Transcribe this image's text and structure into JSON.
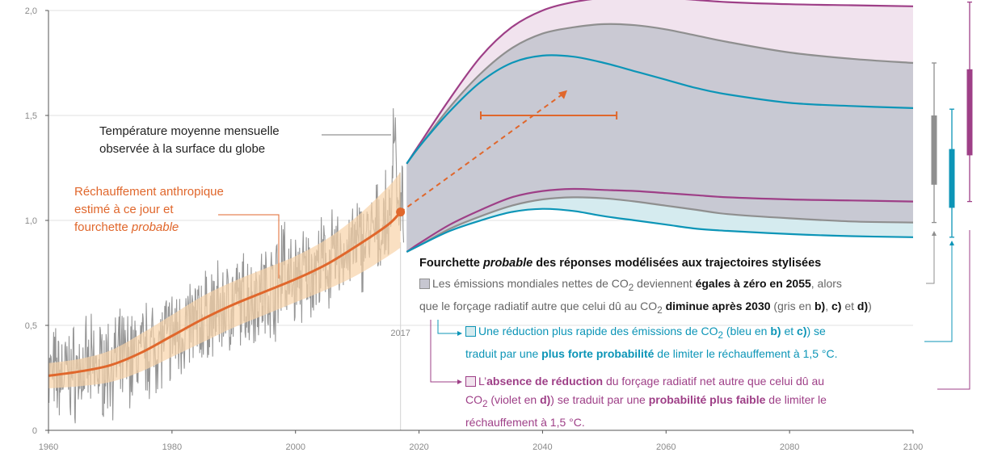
{
  "chart_data": {
    "type": "line",
    "xlim": [
      1960,
      2100
    ],
    "ylim": [
      0,
      2.0
    ],
    "x_ticks": [
      "1960",
      "1980",
      "2000",
      "2020",
      "2040",
      "2060",
      "2080",
      "2100"
    ],
    "y_ticks": [
      "0",
      "0,5",
      "1,0",
      "1,5",
      "2,0"
    ],
    "x_tick_values": [
      1960,
      1980,
      2000,
      2020,
      2040,
      2060,
      2080,
      2100
    ],
    "y_tick_values": [
      0,
      0.5,
      1.0,
      1.5,
      2.0
    ],
    "marker_year_label": "2017",
    "marker_year": 2017,
    "anthropogenic_warming": {
      "x": [
        1960,
        1965,
        1970,
        1975,
        1980,
        1985,
        1990,
        1995,
        2000,
        2005,
        2010,
        2015,
        2017
      ],
      "central": [
        0.26,
        0.28,
        0.31,
        0.37,
        0.45,
        0.53,
        0.6,
        0.66,
        0.72,
        0.79,
        0.88,
        0.98,
        1.04
      ],
      "lower": [
        0.2,
        0.21,
        0.23,
        0.28,
        0.35,
        0.42,
        0.49,
        0.55,
        0.61,
        0.67,
        0.74,
        0.83,
        0.87
      ],
      "upper": [
        0.32,
        0.34,
        0.38,
        0.46,
        0.55,
        0.64,
        0.71,
        0.77,
        0.83,
        0.91,
        1.02,
        1.16,
        1.23
      ]
    },
    "projection_arrow": {
      "from": [
        2017,
        1.04
      ],
      "to": [
        2044,
        1.62
      ]
    },
    "range_bar": {
      "x": [
        2030,
        2052
      ],
      "y": 1.5
    },
    "scenarios": {
      "x": [
        2018,
        2020,
        2025,
        2030,
        2035,
        2040,
        2045,
        2050,
        2055,
        2060,
        2065,
        2070,
        2080,
        2090,
        2100
      ],
      "purple_upper": [
        1.27,
        1.36,
        1.58,
        1.78,
        1.92,
        2.0,
        2.04,
        2.06,
        2.065,
        2.06,
        2.05,
        2.04,
        2.03,
        2.025,
        2.02
      ],
      "gray_upper": [
        1.27,
        1.35,
        1.54,
        1.7,
        1.82,
        1.89,
        1.92,
        1.935,
        1.93,
        1.91,
        1.88,
        1.85,
        1.8,
        1.77,
        1.75
      ],
      "blue_upper": [
        1.27,
        1.35,
        1.52,
        1.66,
        1.75,
        1.785,
        1.78,
        1.75,
        1.71,
        1.67,
        1.63,
        1.6,
        1.56,
        1.545,
        1.535
      ],
      "purple_lower": [
        0.85,
        0.89,
        0.98,
        1.05,
        1.11,
        1.14,
        1.15,
        1.145,
        1.14,
        1.13,
        1.12,
        1.11,
        1.1,
        1.095,
        1.09
      ],
      "gray_lower": [
        0.85,
        0.88,
        0.96,
        1.02,
        1.07,
        1.1,
        1.11,
        1.105,
        1.09,
        1.07,
        1.05,
        1.03,
        1.01,
        0.995,
        0.99
      ],
      "blue_lower": [
        0.85,
        0.88,
        0.95,
        1.0,
        1.04,
        1.055,
        1.045,
        1.02,
        1.0,
        0.98,
        0.96,
        0.95,
        0.935,
        0.925,
        0.92
      ]
    },
    "side_bars": [
      {
        "name": "gris",
        "color": "#8f8f8f",
        "whisker": [
          0.99,
          1.75
        ],
        "box": [
          1.17,
          1.5
        ]
      },
      {
        "name": "bleu",
        "color": "#0c95b7",
        "whisker": [
          0.92,
          1.53
        ],
        "box": [
          1.06,
          1.34
        ]
      },
      {
        "name": "violet",
        "color": "#9e3f87",
        "whisker": [
          1.09,
          2.04
        ],
        "box": [
          1.31,
          1.72
        ]
      }
    ],
    "colors": {
      "orange": "#e0672c",
      "orange_band": "#f8d3a8",
      "gray": "#8f8f8f",
      "blue": "#0c95b7",
      "purple": "#9e3f87",
      "gray_fill": "#c7c7d1",
      "blue_fill": "#d5ebef",
      "purple_fill": "#f1e3ee",
      "observed": "#8a8a8a"
    }
  },
  "annotations": {
    "observed_line1": "Température moyenne mensuelle",
    "observed_line2": "observée à la surface du globe",
    "anthro_line1": "Réchauffement anthropique",
    "anthro_line2": "estimé à ce jour et",
    "anthro_line3_prefix": "fourchette ",
    "anthro_line3_italic": "probable"
  },
  "legend": {
    "title_prefix": "Fourchette ",
    "title_italic": "probable",
    "title_suffix": " des réponses modélisées aux trajectoires stylisées",
    "gray": {
      "t1": "Les émissions mondiales nettes de CO",
      "t1_sub": "2",
      "t2": " deviennent ",
      "b1": "égales à zéro en 2055",
      "t3": ", alors",
      "t4": "que le forçage radiatif autre que celui dû au CO",
      "t4_sub": "2",
      "t5": " ",
      "b2": "diminue après 2030",
      "t6": " (gris en ",
      "b3": "b)",
      "t7": ", ",
      "b4": "c)",
      "t8": " et ",
      "b5": "d)",
      "t9": ")"
    },
    "blue": {
      "t1": "Une réduction plus rapide des émissions de CO",
      "t1_sub": "2",
      "t2": " (bleu en ",
      "b1": "b)",
      "t3": " et ",
      "b2": "c)",
      "t4": ") se",
      "t5": "traduit par une ",
      "b3": "plus forte probabilité",
      "t6": " de limiter le réchauffement à 1,5 °C."
    },
    "purple": {
      "t1": "L’",
      "b1": "absence de réduction",
      "t2": " du forçage radiatif net autre que celui dû au",
      "t3": "CO",
      "t3_sub": "2",
      "t4": " (violet en ",
      "b2": "d)",
      "t5": ") se traduit par une ",
      "b3": "probabilité plus faible",
      "t6": " de limiter le",
      "t7": "réchauffement à 1,5 °C."
    }
  }
}
